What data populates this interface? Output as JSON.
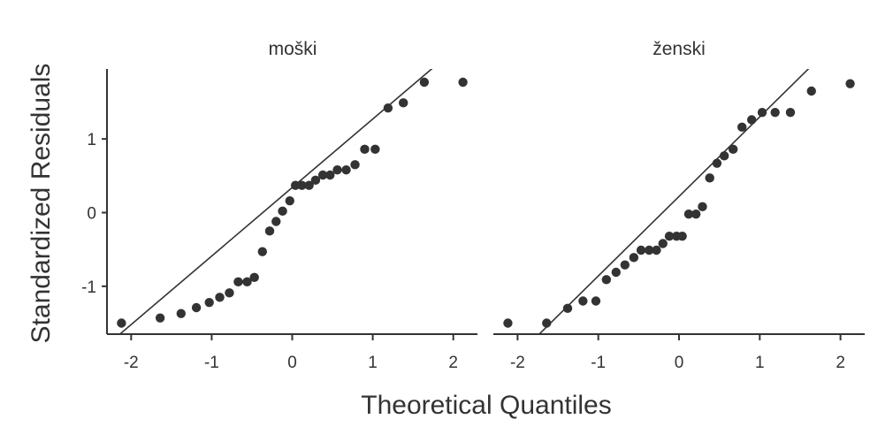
{
  "chart_data": {
    "type": "scatter",
    "xlabel": "Theoretical Quantiles",
    "ylabel": "Standardized Residuals",
    "xticks": [
      "-2",
      "-1",
      "0",
      "1",
      "2"
    ],
    "yticks": [
      "-1",
      "0",
      "1"
    ],
    "xlim": [
      -2.3,
      2.3
    ],
    "ylim": [
      -1.65,
      1.95
    ],
    "grid": false,
    "colors": {
      "points": "#333333",
      "line": "#333333",
      "axis": "#333333"
    },
    "panels": [
      {
        "title": "moški",
        "line": {
          "intercept": 0.34,
          "slope": 0.93
        },
        "points": [
          {
            "x": -2.12,
            "y": -1.5
          },
          {
            "x": -1.64,
            "y": -1.43
          },
          {
            "x": -1.38,
            "y": -1.37
          },
          {
            "x": -1.19,
            "y": -1.29
          },
          {
            "x": -1.03,
            "y": -1.22
          },
          {
            "x": -0.9,
            "y": -1.15
          },
          {
            "x": -0.78,
            "y": -1.09
          },
          {
            "x": -0.67,
            "y": -0.94
          },
          {
            "x": -0.56,
            "y": -0.94
          },
          {
            "x": -0.47,
            "y": -0.88
          },
          {
            "x": -0.37,
            "y": -0.53
          },
          {
            "x": -0.28,
            "y": -0.25
          },
          {
            "x": -0.2,
            "y": -0.12
          },
          {
            "x": -0.12,
            "y": 0.02
          },
          {
            "x": -0.03,
            "y": 0.16
          },
          {
            "x": 0.04,
            "y": 0.37
          },
          {
            "x": 0.12,
            "y": 0.37
          },
          {
            "x": 0.21,
            "y": 0.37
          },
          {
            "x": 0.29,
            "y": 0.44
          },
          {
            "x": 0.38,
            "y": 0.51
          },
          {
            "x": 0.47,
            "y": 0.51
          },
          {
            "x": 0.56,
            "y": 0.58
          },
          {
            "x": 0.67,
            "y": 0.58
          },
          {
            "x": 0.78,
            "y": 0.65
          },
          {
            "x": 0.9,
            "y": 0.86
          },
          {
            "x": 1.03,
            "y": 0.86
          },
          {
            "x": 1.19,
            "y": 1.42
          },
          {
            "x": 1.38,
            "y": 1.49
          },
          {
            "x": 1.64,
            "y": 1.77
          },
          {
            "x": 2.12,
            "y": 1.77
          }
        ]
      },
      {
        "title": "ženski",
        "line": {
          "intercept": 0.22,
          "slope": 1.08
        },
        "points": [
          {
            "x": -2.12,
            "y": -1.5
          },
          {
            "x": -1.64,
            "y": -1.5
          },
          {
            "x": -1.38,
            "y": -1.3
          },
          {
            "x": -1.19,
            "y": -1.2
          },
          {
            "x": -1.03,
            "y": -1.2
          },
          {
            "x": -0.9,
            "y": -0.91
          },
          {
            "x": -0.78,
            "y": -0.81
          },
          {
            "x": -0.67,
            "y": -0.71
          },
          {
            "x": -0.56,
            "y": -0.61
          },
          {
            "x": -0.47,
            "y": -0.51
          },
          {
            "x": -0.37,
            "y": -0.51
          },
          {
            "x": -0.28,
            "y": -0.51
          },
          {
            "x": -0.2,
            "y": -0.42
          },
          {
            "x": -0.12,
            "y": -0.32
          },
          {
            "x": -0.03,
            "y": -0.32
          },
          {
            "x": 0.04,
            "y": -0.32
          },
          {
            "x": 0.12,
            "y": -0.02
          },
          {
            "x": 0.21,
            "y": -0.02
          },
          {
            "x": 0.29,
            "y": 0.08
          },
          {
            "x": 0.38,
            "y": 0.47
          },
          {
            "x": 0.47,
            "y": 0.67
          },
          {
            "x": 0.56,
            "y": 0.77
          },
          {
            "x": 0.67,
            "y": 0.86
          },
          {
            "x": 0.78,
            "y": 1.16
          },
          {
            "x": 0.9,
            "y": 1.26
          },
          {
            "x": 1.03,
            "y": 1.36
          },
          {
            "x": 1.19,
            "y": 1.36
          },
          {
            "x": 1.38,
            "y": 1.36
          },
          {
            "x": 1.64,
            "y": 1.65
          },
          {
            "x": 2.12,
            "y": 1.75
          }
        ]
      }
    ]
  }
}
